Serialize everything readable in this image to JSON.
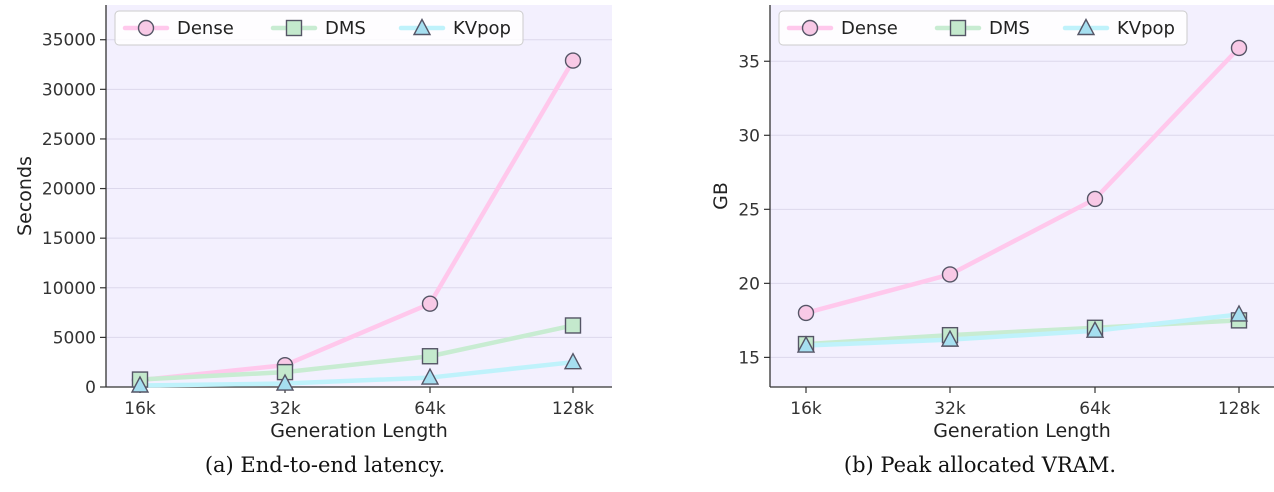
{
  "chart_data": [
    {
      "type": "line",
      "xlabel": "Generation Length",
      "ylabel": "Seconds",
      "caption": "(a) End-to-end latency.",
      "categories": [
        "16k",
        "32k",
        "64k",
        "128k"
      ],
      "ylim": [
        0,
        38500
      ],
      "yticks": [
        0,
        5000,
        10000,
        15000,
        20000,
        25000,
        30000,
        35000
      ],
      "grid": "horizontal",
      "legend_position": "top",
      "series": [
        {
          "name": "Dense",
          "marker": "circle",
          "color": "#ffc8ec",
          "values": [
            700,
            2200,
            8400,
            32900
          ]
        },
        {
          "name": "DMS",
          "marker": "square",
          "color": "#c8ecd2",
          "values": [
            750,
            1500,
            3100,
            6200
          ]
        },
        {
          "name": "KVpop",
          "marker": "triangle",
          "color": "#bff2fb",
          "values": [
            150,
            350,
            950,
            2500
          ]
        }
      ]
    },
    {
      "type": "line",
      "xlabel": "Generation Length",
      "ylabel": "GB",
      "caption": "(b) Peak allocated VRAM.",
      "categories": [
        "16k",
        "32k",
        "64k",
        "128k"
      ],
      "ylim": [
        13,
        38.8
      ],
      "yticks": [
        15,
        20,
        25,
        30,
        35
      ],
      "grid": "horizontal",
      "legend_position": "top",
      "series": [
        {
          "name": "Dense",
          "marker": "circle",
          "color": "#ffc8ec",
          "values": [
            18.0,
            20.6,
            25.7,
            35.9
          ]
        },
        {
          "name": "DMS",
          "marker": "square",
          "color": "#c8ecd2",
          "values": [
            15.9,
            16.5,
            17.0,
            17.5
          ]
        },
        {
          "name": "KVpop",
          "marker": "triangle",
          "color": "#bff2fb",
          "values": [
            15.8,
            16.2,
            16.8,
            17.9
          ]
        }
      ]
    }
  ],
  "style": {
    "plot_background": "#f3f0fe",
    "grid_color": "#dcd8ec",
    "marker_fill": {
      "Dense": "#f8c9e6",
      "DMS": "#c4e9cd",
      "KVpop": "#a6dff0"
    },
    "marker_edge": "#555566"
  }
}
